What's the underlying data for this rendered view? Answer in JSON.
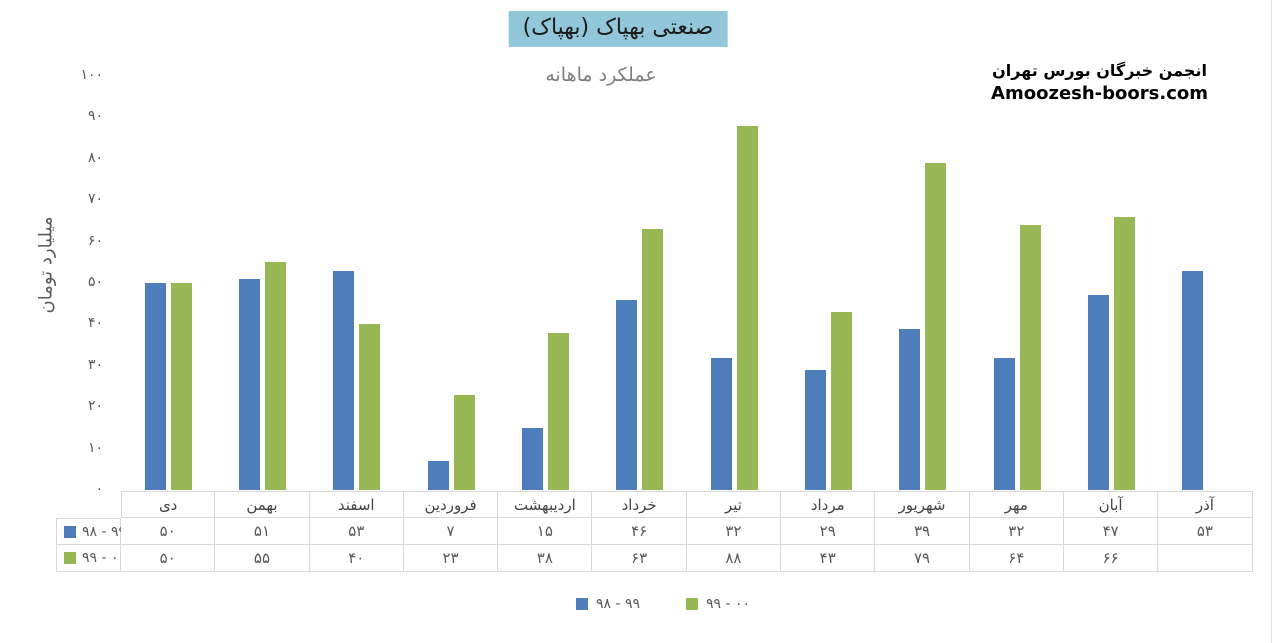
{
  "header": {
    "title": "صنعتی بهپاک (بهپاک)",
    "subtitle": "عملکرد ماهانه",
    "brand_line1": "انجمن خبرگان بورس تهران",
    "brand_line2": "Amoozesh-boors.com"
  },
  "colors": {
    "series1_blue": "#4d7dbb",
    "series2_green": "#97b855",
    "title_highlight": "#92c7d9",
    "table_border": "#d9d9d9",
    "text_gray": "#595959"
  },
  "chart_data": {
    "type": "bar",
    "title": "صنعتی بهپاک (بهپاک)",
    "subtitle": "عملکرد ماهانه",
    "xlabel": "",
    "ylabel": "میلیارد تومان",
    "ylim": [
      0,
      100
    ],
    "grid": false,
    "legend_position": "bottom",
    "categories": [
      "دی",
      "بهمن",
      "اسفند",
      "فروردین",
      "اردیبهشت",
      "خرداد",
      "تیر",
      "مرداد",
      "شهریور",
      "مهر",
      "آبان",
      "آذر"
    ],
    "yticks": {
      "values": [
        0,
        10,
        20,
        30,
        40,
        50,
        60,
        70,
        80,
        90,
        100
      ],
      "labels": [
        "۰",
        "۱۰",
        "۲۰",
        "۳۰",
        "۴۰",
        "۵۰",
        "۶۰",
        "۷۰",
        "۸۰",
        "۹۰",
        "۱۰۰"
      ]
    },
    "series": [
      {
        "name": "۹۸ - ۹۹",
        "color": "#4d7dbb",
        "values": [
          50,
          51,
          53,
          7,
          15,
          46,
          32,
          29,
          39,
          32,
          47,
          53
        ],
        "value_labels": [
          "۵۰",
          "۵۱",
          "۵۳",
          "۷",
          "۱۵",
          "۴۶",
          "۳۲",
          "۲۹",
          "۳۹",
          "۳۲",
          "۴۷",
          "۵۳"
        ]
      },
      {
        "name": "۹۹ - ۰۰",
        "color": "#97b855",
        "values": [
          50,
          55,
          40,
          23,
          38,
          63,
          88,
          43,
          79,
          64,
          66,
          null
        ],
        "value_labels": [
          "۵۰",
          "۵۵",
          "۴۰",
          "۲۳",
          "۳۸",
          "۶۳",
          "۸۸",
          "۴۳",
          "۷۹",
          "۶۴",
          "۶۶",
          ""
        ]
      }
    ]
  }
}
